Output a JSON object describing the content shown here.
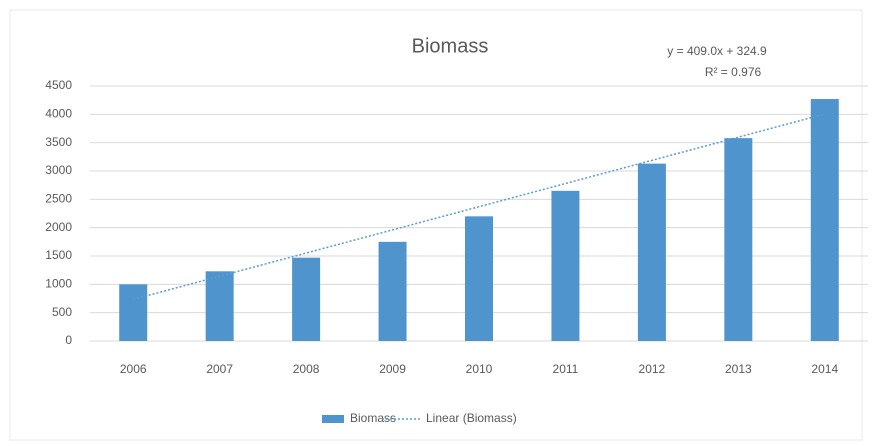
{
  "chart_data": {
    "type": "bar",
    "title": "Biomass",
    "categories": [
      "2006",
      "2007",
      "2008",
      "2009",
      "2010",
      "2011",
      "2012",
      "2013",
      "2014"
    ],
    "series": [
      {
        "name": "Biomass",
        "color": "#4f94cd",
        "values": [
          1000,
          1230,
          1470,
          1750,
          2200,
          2650,
          3130,
          3580,
          4270
        ]
      }
    ],
    "trendline": {
      "name": "Linear (Biomass)",
      "color": "#5b9bd5",
      "equation": "y = 409.0x  + 324.9",
      "slope": 409.0,
      "intercept": 324.9,
      "r_squared": "R² = 0.976"
    },
    "ylim": [
      0,
      4500
    ],
    "yticks": [
      0,
      500,
      1000,
      1500,
      2000,
      2500,
      3000,
      3500,
      4000,
      4500
    ],
    "grid": true,
    "legend": "bottom"
  }
}
